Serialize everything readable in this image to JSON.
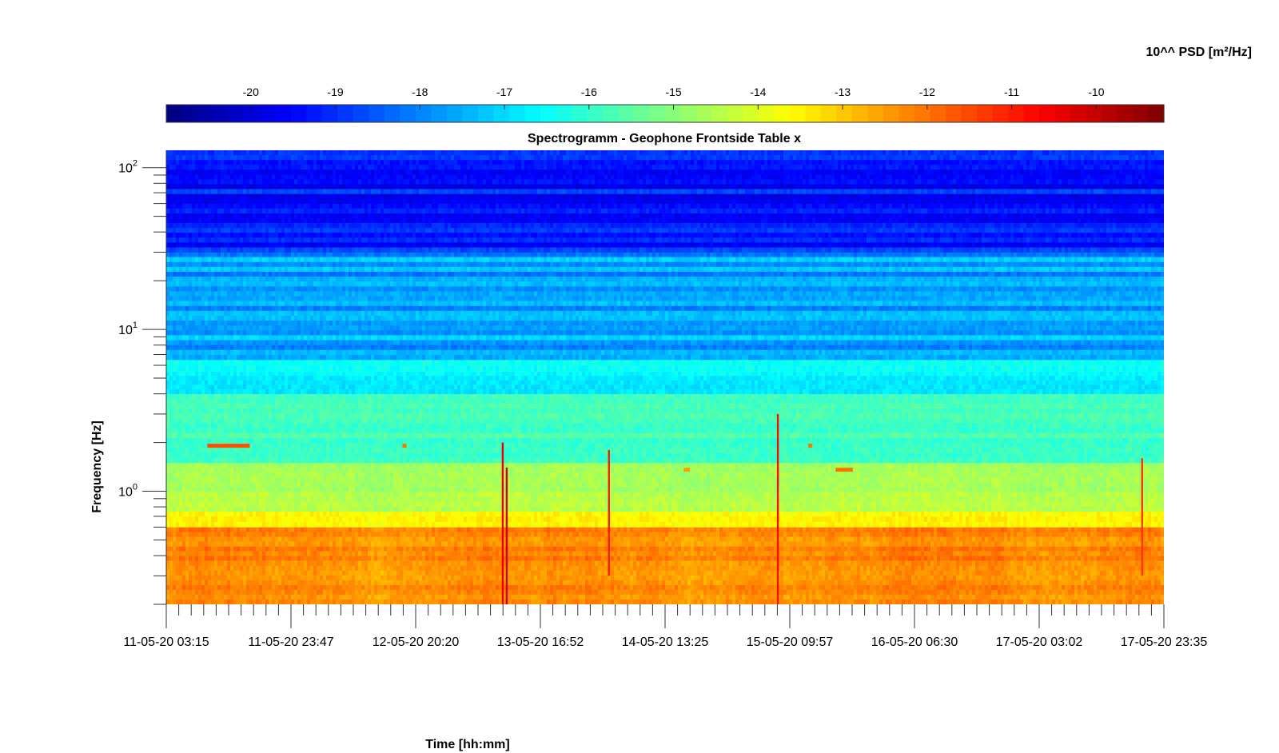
{
  "chart_data": {
    "type": "heatmap",
    "title": "Spectrogramm - Geophone Frontside Table x",
    "xlabel": "Time [hh:mm]",
    "ylabel": "Frequency [Hz]",
    "x_tick_labels": [
      "11-05-20 03:15",
      "11-05-20 23:47",
      "12-05-20 20:20",
      "13-05-20 16:52",
      "14-05-20 13:25",
      "15-05-20 09:57",
      "16-05-20 06:30",
      "17-05-20 03:02",
      "17-05-20 23:35"
    ],
    "xlim": [
      "11-05-20 03:15",
      "17-05-20 23:35"
    ],
    "yscale": "log",
    "ylim": [
      0.2,
      128
    ],
    "y_ticks": [
      {
        "base": "10",
        "exp": "0",
        "value": 1
      },
      {
        "base": "10",
        "exp": "1",
        "value": 10
      },
      {
        "base": "10",
        "exp": "2",
        "value": 100
      }
    ],
    "colorbar": {
      "label": "10^^ PSD [m²/Hz]",
      "placement": "top",
      "colormap": "jet",
      "range": [
        -21,
        -9.2
      ],
      "tick_values": [
        -20,
        -19,
        -18,
        -17,
        -16,
        -15,
        -14,
        -13,
        -12,
        -11,
        -10
      ],
      "tick_labels": [
        "-20",
        "-19",
        "-18",
        "-17",
        "-16",
        "-15",
        "-14",
        "-13",
        "-12",
        "-11",
        "-10"
      ]
    },
    "bands": [
      {
        "f_min": 0.2,
        "f_max": 0.6,
        "psd_log10": -12.3
      },
      {
        "f_min": 0.6,
        "f_max": 0.75,
        "psd_log10": -13.6
      },
      {
        "f_min": 0.75,
        "f_max": 1.5,
        "psd_log10": -14.6
      },
      {
        "f_min": 1.5,
        "f_max": 4.0,
        "psd_log10": -15.8
      },
      {
        "f_min": 4.0,
        "f_max": 5.5,
        "psd_log10": -16.8
      },
      {
        "f_min": 5.5,
        "f_max": 6.5,
        "psd_log10": -16.3
      },
      {
        "f_min": 6.5,
        "f_max": 30,
        "psd_log10": -17.6
      },
      {
        "f_min": 30,
        "f_max": 128,
        "psd_log10": -19.3
      }
    ],
    "transient_events": [
      {
        "time": "13-05-20 10:40",
        "f_min": 0.2,
        "f_max": 2.0,
        "psd_log10": -10.5
      },
      {
        "time": "13-05-20 11:20",
        "f_min": 0.2,
        "f_max": 1.4,
        "psd_log10": -10.2
      },
      {
        "time": "14-05-20 04:10",
        "f_min": 0.3,
        "f_max": 1.8,
        "psd_log10": -11.0
      },
      {
        "time": "15-05-20 08:00",
        "f_min": 0.2,
        "f_max": 3.0,
        "psd_log10": -10.8
      },
      {
        "time": "17-05-20 20:00",
        "f_min": 0.3,
        "f_max": 1.6,
        "psd_log10": -11.3
      }
    ],
    "tonal_features": [
      {
        "t_start": "11-05-20 10:00",
        "t_end": "11-05-20 17:00",
        "freq": 1.9,
        "psd_log10": -11.6
      },
      {
        "t_start": "12-05-20 18:10",
        "t_end": "12-05-20 18:50",
        "freq": 1.9,
        "psd_log10": -12.0
      },
      {
        "t_start": "15-05-20 13:00",
        "t_end": "15-05-20 13:40",
        "freq": 1.9,
        "psd_log10": -12.0
      },
      {
        "t_start": "15-05-20 17:30",
        "t_end": "15-05-20 20:20",
        "freq": 1.35,
        "psd_log10": -12.0
      },
      {
        "t_start": "14-05-20 16:30",
        "t_end": "14-05-20 17:30",
        "freq": 1.35,
        "psd_log10": -12.5
      }
    ]
  }
}
